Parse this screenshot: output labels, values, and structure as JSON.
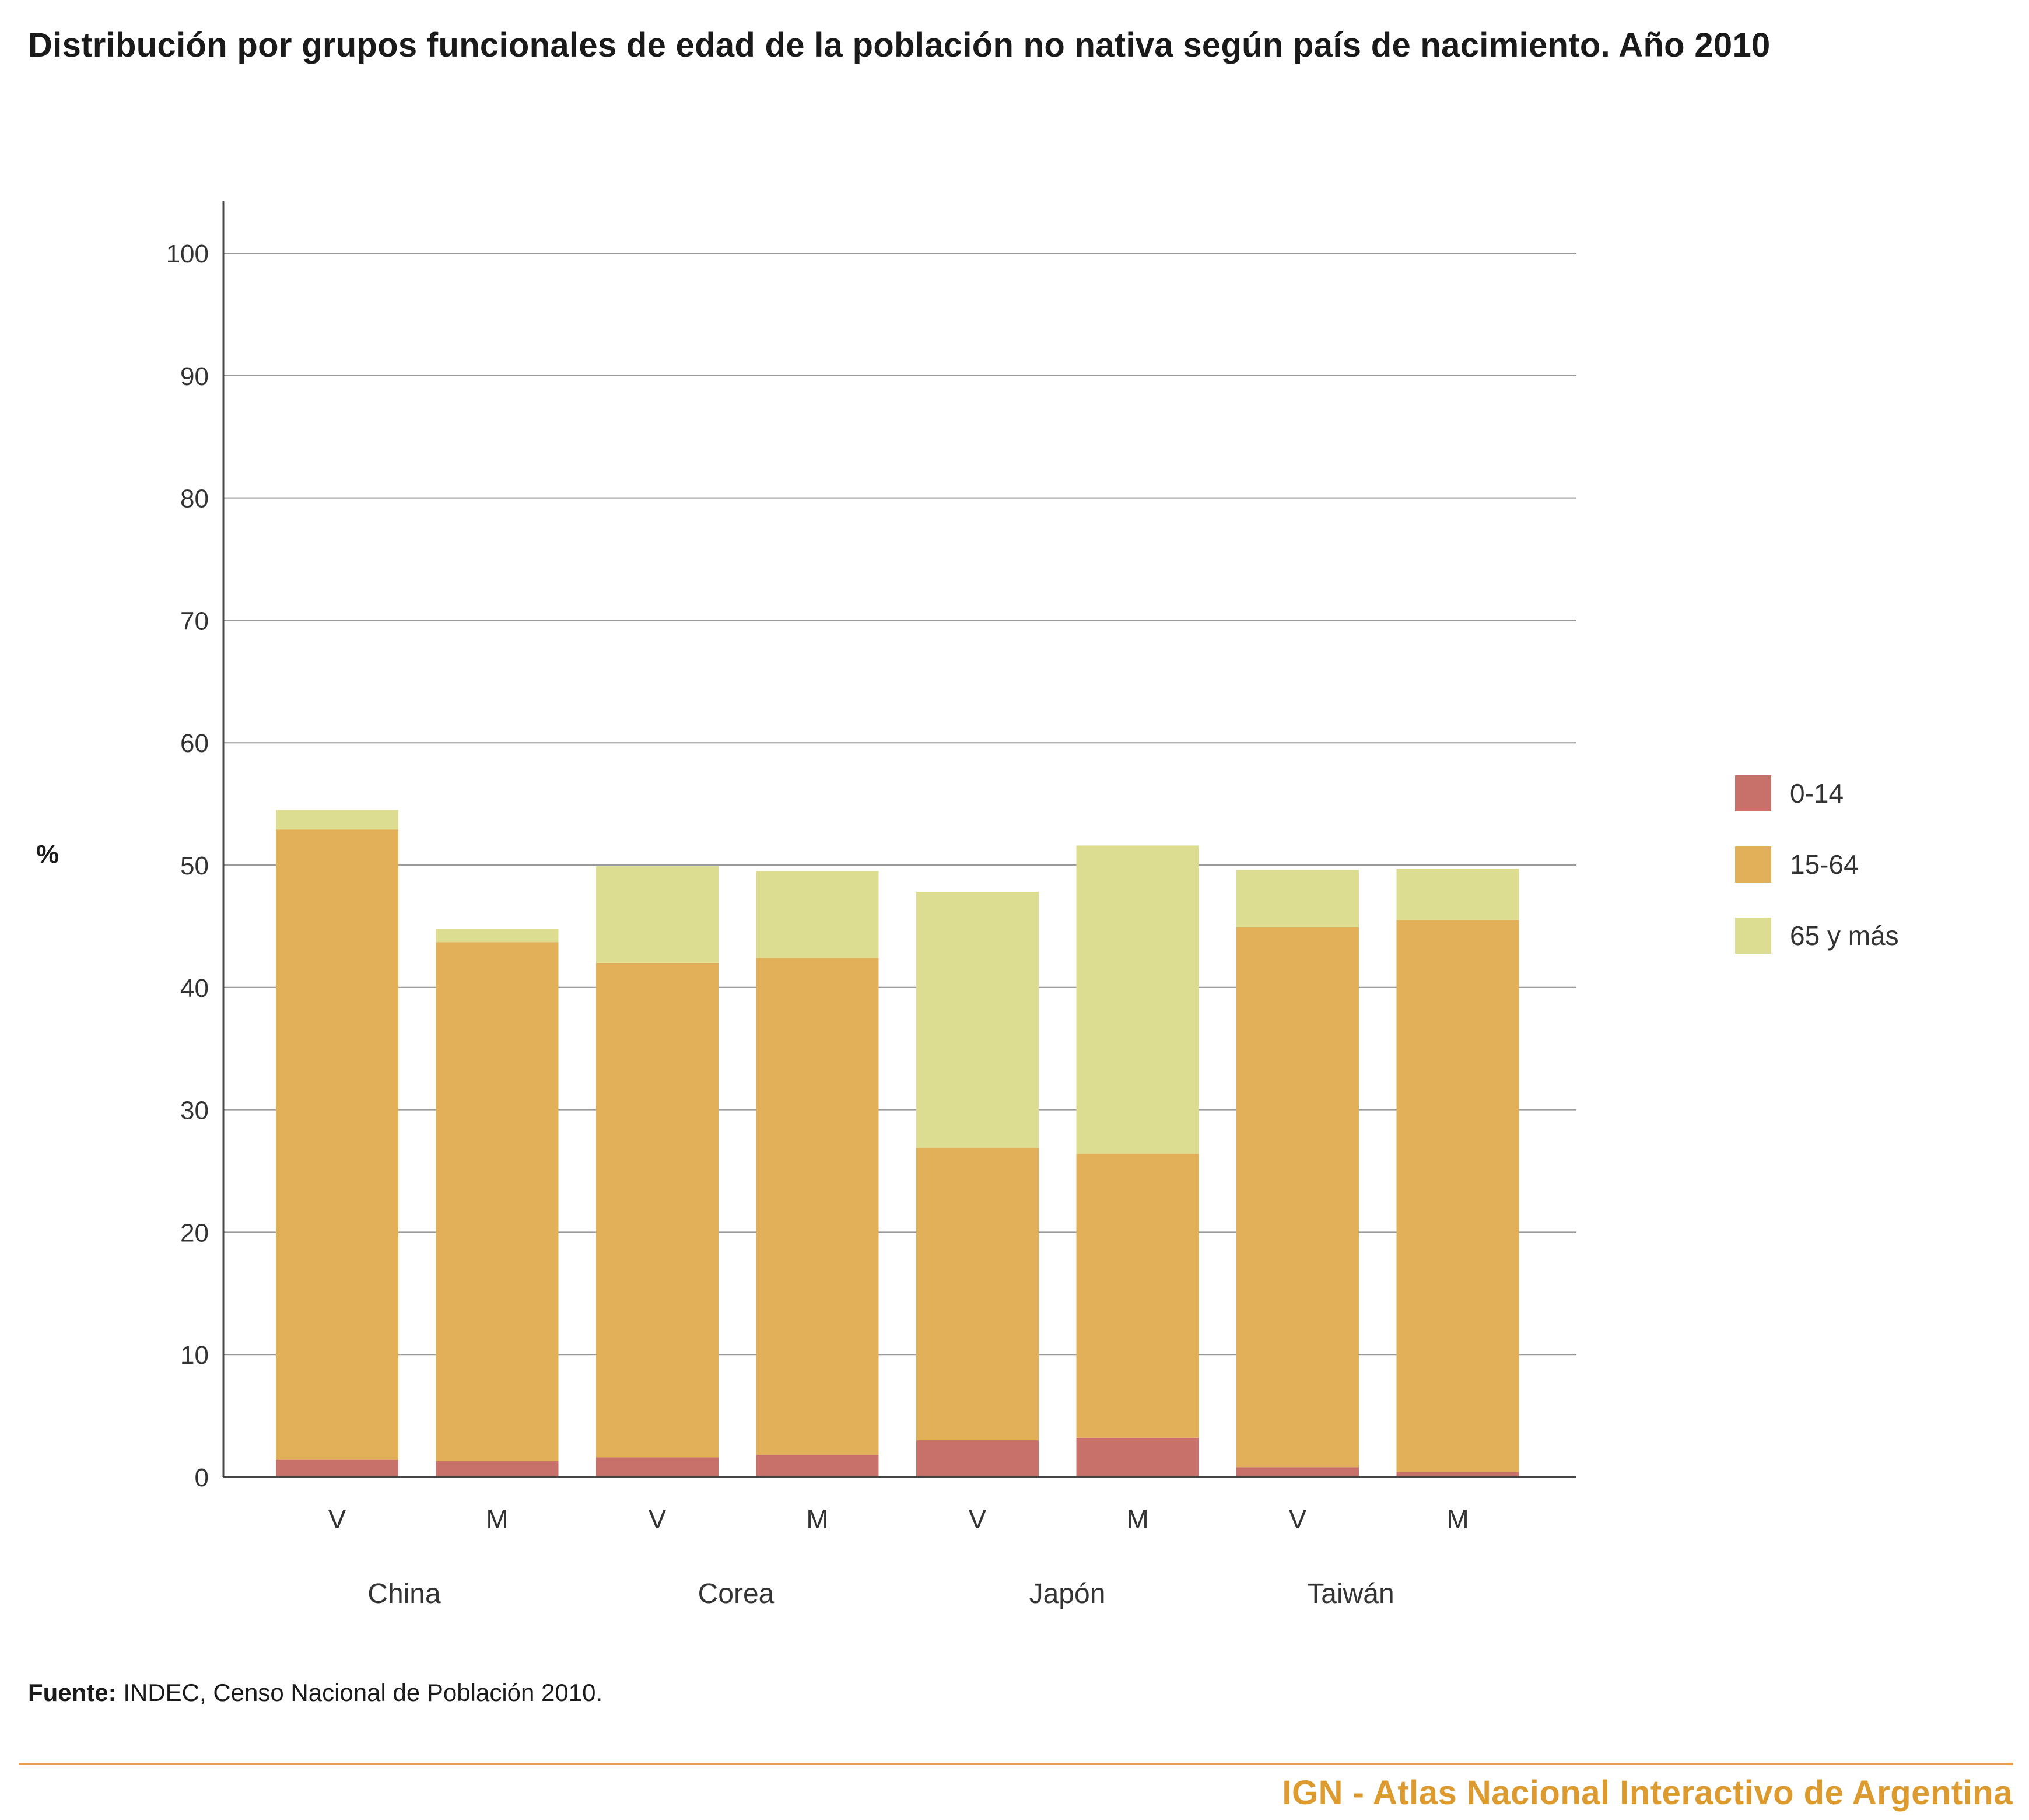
{
  "title": "Distribución por grupos funcionales de edad de la población no nativa según país de nacimiento. Año 2010",
  "source_label": "Fuente:",
  "source_text": " INDEC, Censo Nacional de Población 2010.",
  "footer": "IGN - Atlas Nacional Interactivo de Argentina",
  "chart_data": {
    "type": "bar",
    "stacked": true,
    "title": "Distribución por grupos funcionales de edad de la población no nativa según país de nacimiento. Año 2010",
    "ylabel": "%",
    "xlabel": "",
    "ylim": [
      0,
      100
    ],
    "yticks": [
      0,
      10,
      20,
      30,
      40,
      50,
      60,
      70,
      80,
      90,
      100
    ],
    "grid": true,
    "legend_position": "right",
    "categories": [
      "V",
      "M",
      "V",
      "M",
      "V",
      "M",
      "V",
      "M"
    ],
    "groups": [
      {
        "label": "China",
        "bars": [
          0,
          1
        ]
      },
      {
        "label": "Corea",
        "bars": [
          2,
          3
        ]
      },
      {
        "label": "Japón",
        "bars": [
          4,
          5
        ]
      },
      {
        "label": "Taiwán",
        "bars": [
          6,
          7
        ]
      }
    ],
    "series": [
      {
        "name": "0-14",
        "color": "#c8706a",
        "values": [
          1.4,
          1.3,
          1.6,
          1.8,
          3.0,
          3.2,
          0.8,
          0.4
        ]
      },
      {
        "name": "15-64",
        "color": "#e3b05a",
        "values": [
          51.5,
          42.4,
          40.4,
          40.6,
          23.9,
          23.2,
          44.1,
          45.1
        ]
      },
      {
        "name": "65 y más",
        "color": "#dcdd90",
        "values": [
          1.6,
          1.1,
          7.9,
          7.1,
          20.9,
          25.2,
          4.7,
          4.2
        ]
      }
    ]
  }
}
